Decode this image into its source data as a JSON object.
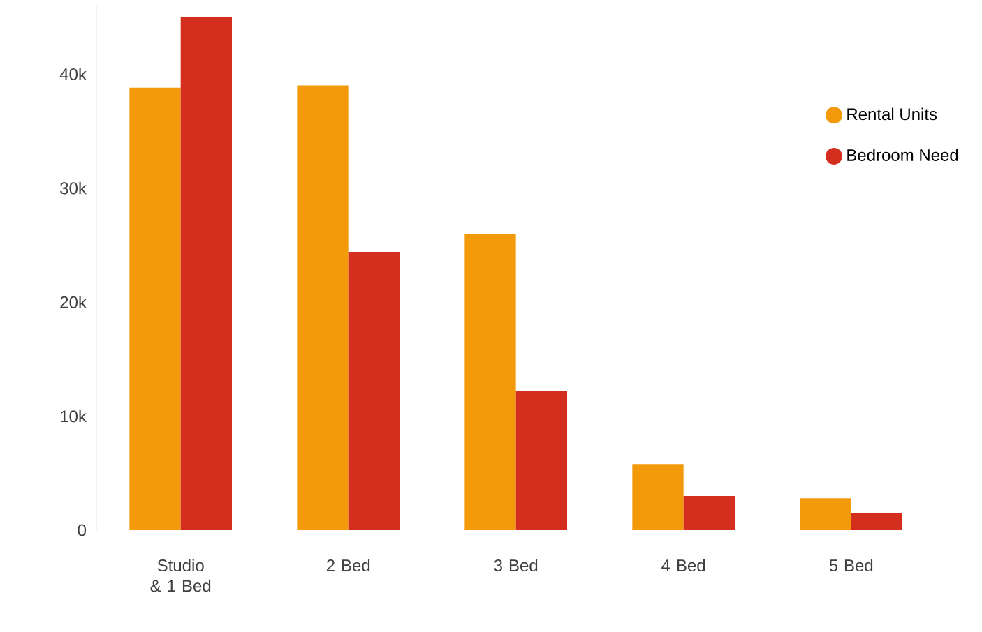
{
  "chart_data": {
    "type": "bar",
    "categories": [
      "Studio & 1 Bed",
      "2 Bed",
      "3 Bed",
      "4 Bed",
      "5 Bed"
    ],
    "series": [
      {
        "name": "Rental Units",
        "color": "#f39a0b",
        "values": [
          38800,
          39000,
          26000,
          5800,
          2800
        ]
      },
      {
        "name": "Bedroom Need",
        "color": "#d42f1e",
        "values": [
          45000,
          24400,
          12200,
          3000,
          1500
        ]
      }
    ],
    "ylim": [
      0,
      46000
    ],
    "yticks": [
      {
        "value": 0,
        "label": "0"
      },
      {
        "value": 10000,
        "label": "10k"
      },
      {
        "value": 20000,
        "label": "20k"
      },
      {
        "value": 30000,
        "label": "30k"
      },
      {
        "value": 40000,
        "label": "40k"
      }
    ],
    "legend": "top right",
    "marker": "circle"
  }
}
